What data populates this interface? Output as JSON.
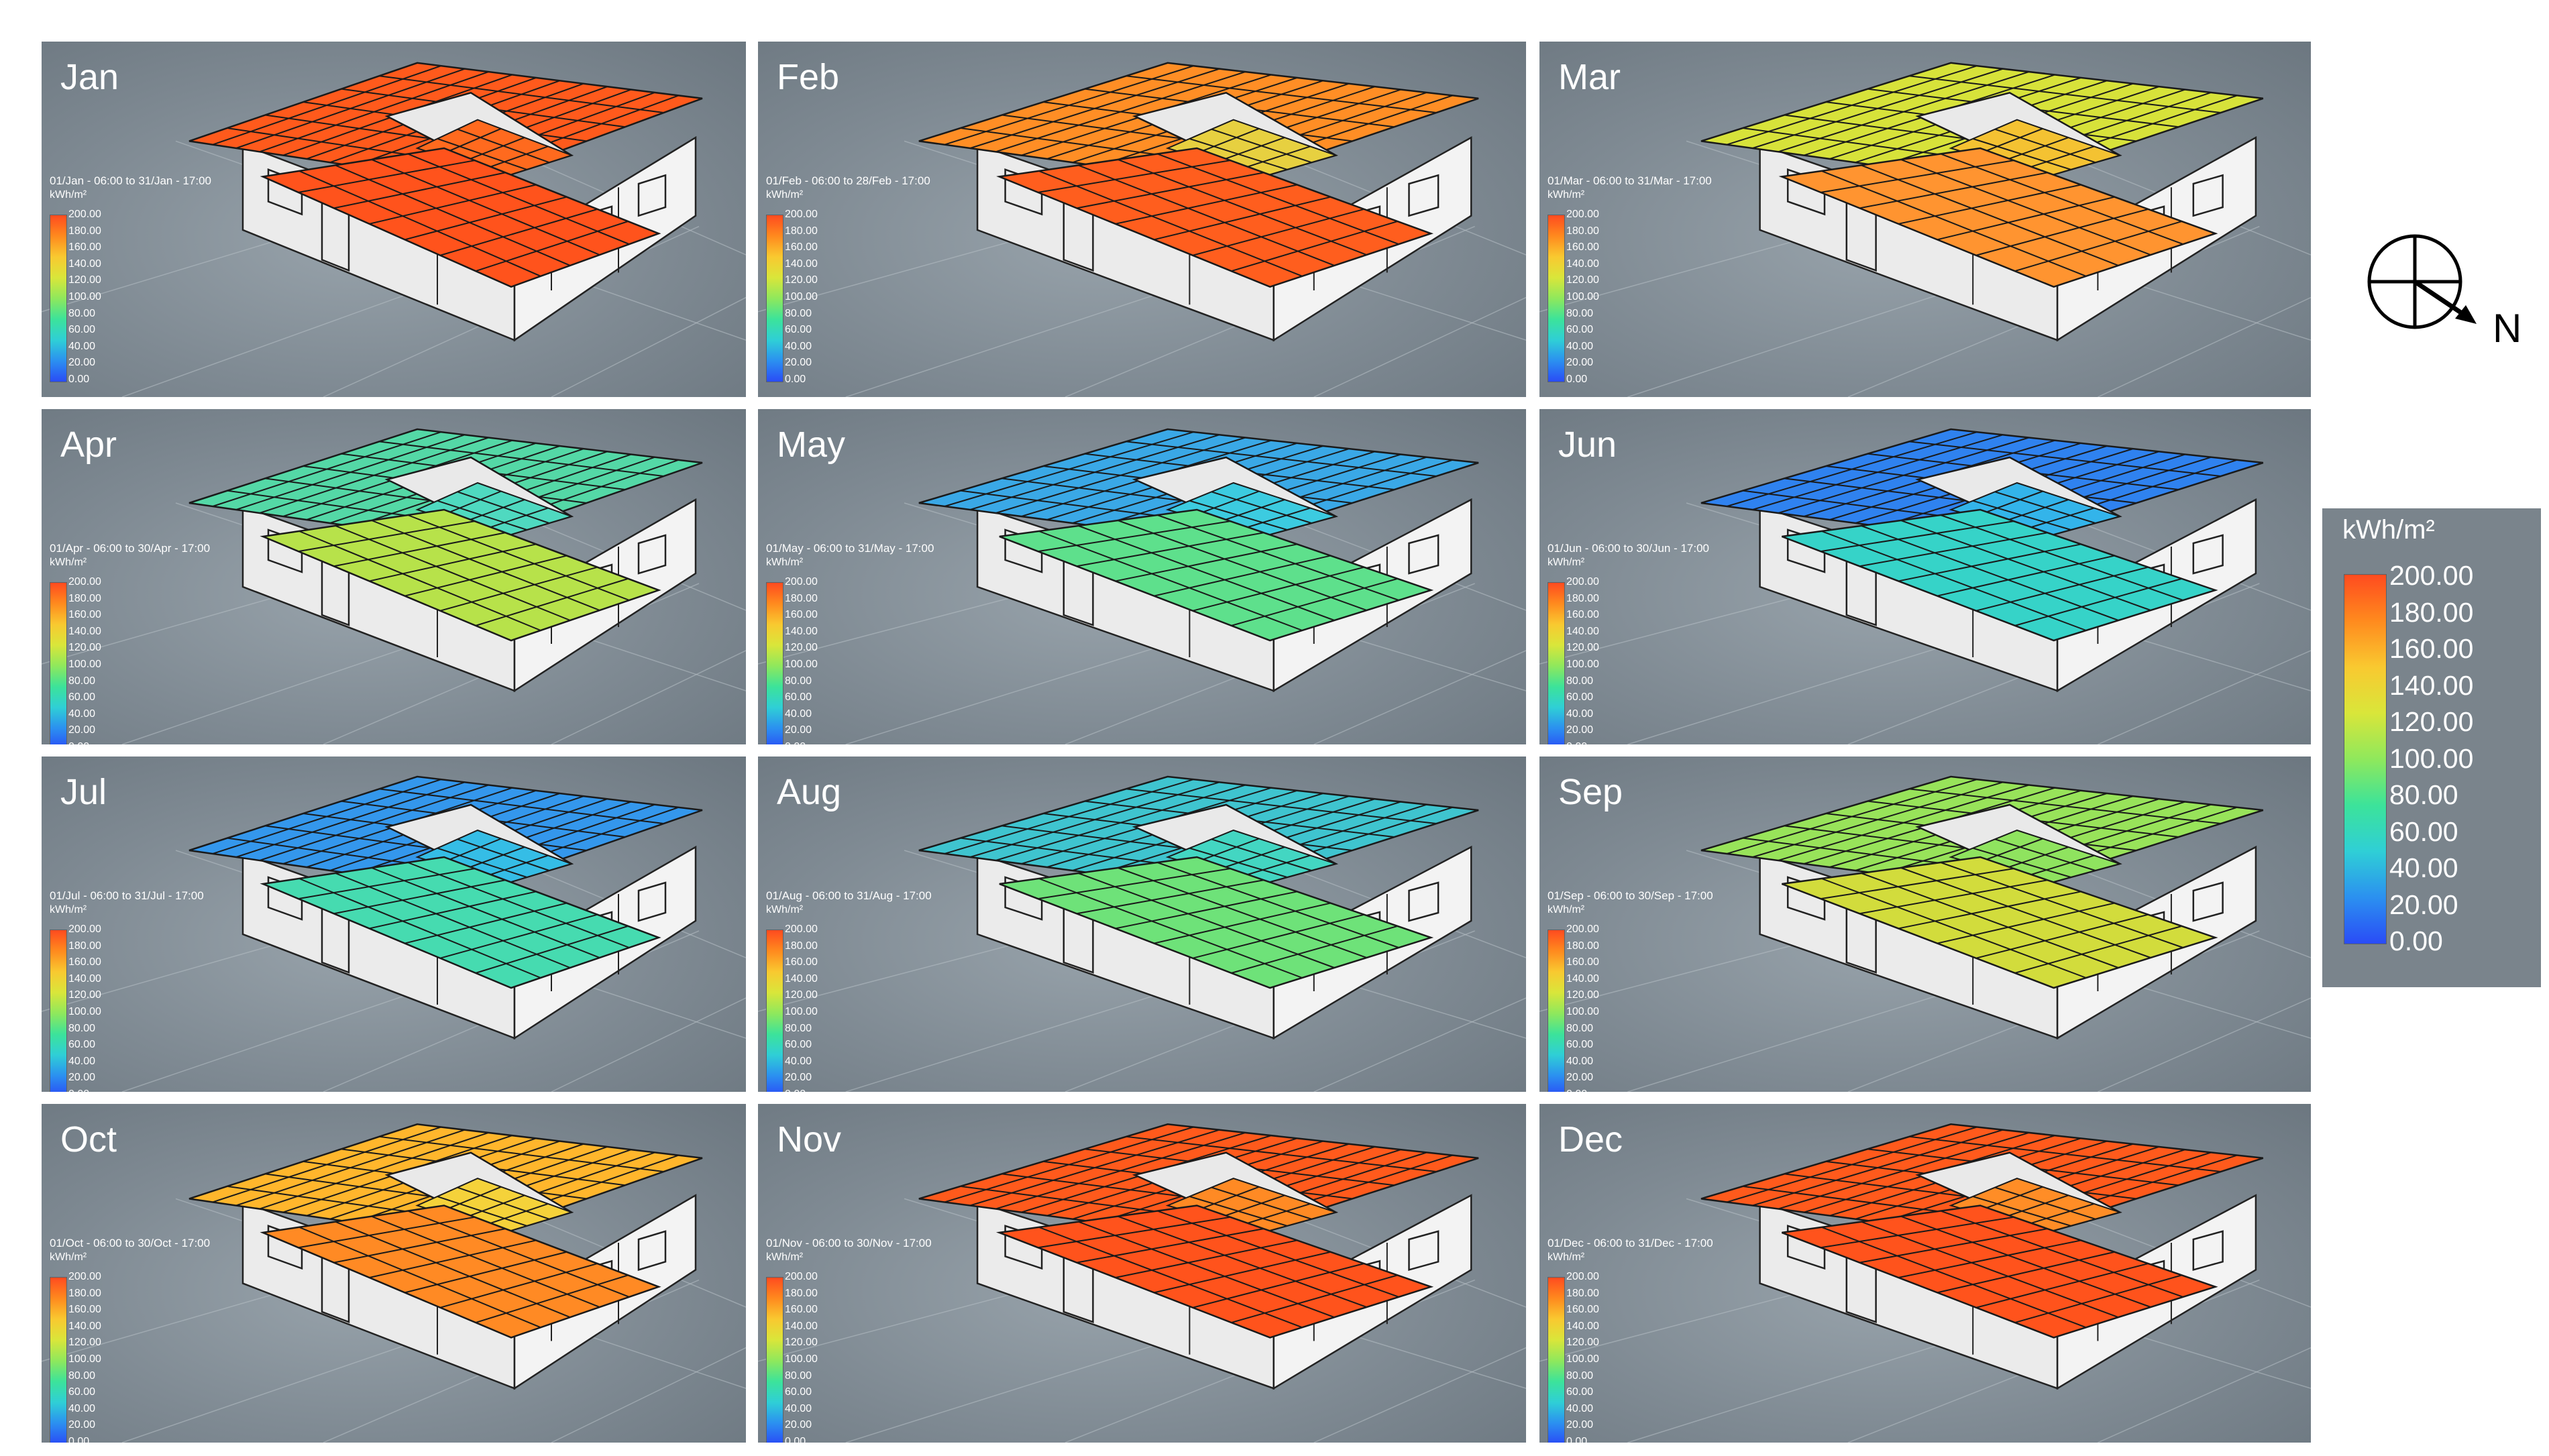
{
  "figure": {
    "colorbar": {
      "unit": "kWh/m²",
      "ticks": [
        "200.00",
        "180.00",
        "160.00",
        "140.00",
        "120.00",
        "100.00",
        "80.00",
        "60.00",
        "40.00",
        "20.00",
        "0.00"
      ],
      "gradient_stops": [
        "#ff4b1f",
        "#ff8a1e",
        "#f9c930",
        "#d9e63a",
        "#8fe85c",
        "#3ce39a",
        "#2fcfd6",
        "#2b90f0",
        "#2a4cf6"
      ]
    },
    "compass": {
      "label": "N"
    },
    "panel_unit": "kWh/m²",
    "panel_ticks": [
      "200.00",
      "180.00",
      "160.00",
      "140.00",
      "120.00",
      "100.00",
      "80.00",
      "60.00",
      "40.00",
      "20.00",
      "0.00"
    ],
    "panels": [
      {
        "month": "Jan",
        "period": "01/Jan - 06:00 to 31/Jan - 17:00",
        "roof_color_back": "#ff5a1c",
        "roof_color_front": "#ff531c",
        "courtyard_color": "#ff6a1e"
      },
      {
        "month": "Feb",
        "period": "01/Feb - 06:00 to 28/Feb - 17:00",
        "roof_color_back": "#ff8e25",
        "roof_color_front": "#ff5e1e",
        "courtyard_color": "#e7d040"
      },
      {
        "month": "Mar",
        "period": "01/Mar - 06:00 to 31/Mar - 17:00",
        "roof_color_back": "#d7e23a",
        "roof_color_front": "#ff9430",
        "courtyard_color": "#f4c232"
      },
      {
        "month": "Apr",
        "period": "01/Apr - 06:00 to 30/Apr - 17:00",
        "roof_color_back": "#54d8a6",
        "roof_color_front": "#b7e24a",
        "courtyard_color": "#4fd9c0"
      },
      {
        "month": "May",
        "period": "01/May - 06:00 to 31/May - 17:00",
        "roof_color_back": "#3aa8e6",
        "roof_color_front": "#5ee08c",
        "courtyard_color": "#3ccbe0"
      },
      {
        "month": "Jun",
        "period": "01/Jun - 06:00 to 30/Jun - 17:00",
        "roof_color_back": "#2f82ef",
        "roof_color_front": "#36d3c8",
        "courtyard_color": "#33b4ea"
      },
      {
        "month": "Jul",
        "period": "01/Jul - 06:00 to 31/Jul - 17:00",
        "roof_color_back": "#3497ec",
        "roof_color_front": "#46dbb0",
        "courtyard_color": "#35bde6"
      },
      {
        "month": "Aug",
        "period": "01/Aug - 06:00 to 31/Aug - 17:00",
        "roof_color_back": "#3fc4cf",
        "roof_color_front": "#6ee279",
        "courtyard_color": "#43d6c2"
      },
      {
        "month": "Sep",
        "period": "01/Sep - 06:00 to 30/Sep - 17:00",
        "roof_color_back": "#98e35a",
        "roof_color_front": "#d2dc3c",
        "courtyard_color": "#8fe35f"
      },
      {
        "month": "Oct",
        "period": "01/Oct - 06:00 to 30/Oct - 17:00",
        "roof_color_back": "#ffb62c",
        "roof_color_front": "#ff8a24",
        "courtyard_color": "#f5d23a"
      },
      {
        "month": "Nov",
        "period": "01/Nov - 06:00 to 30/Nov - 17:00",
        "roof_color_back": "#ff5a1c",
        "roof_color_front": "#ff531c",
        "courtyard_color": "#ff8a24"
      },
      {
        "month": "Dec",
        "period": "01/Dec - 06:00 to 31/Dec - 17:00",
        "roof_color_back": "#ff5a1c",
        "roof_color_front": "#ff531c",
        "courtyard_color": "#ff8d26"
      }
    ]
  }
}
